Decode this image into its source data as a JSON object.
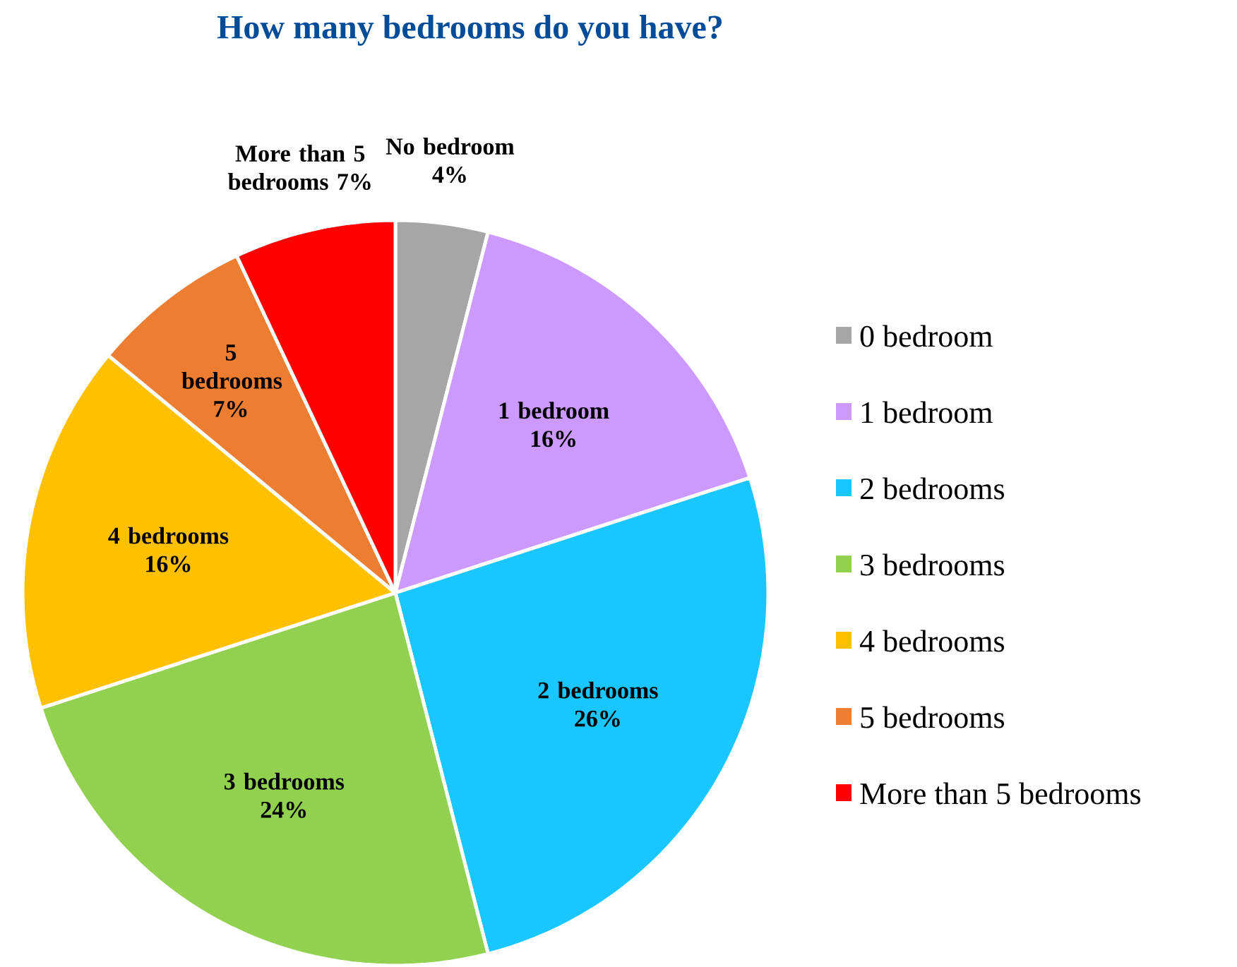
{
  "chart_data": {
    "type": "pie",
    "title": "How many bedrooms do you have?",
    "categories": [
      "0 bedroom",
      "1 bedroom",
      "2 bedrooms",
      "3 bedrooms",
      "4 bedrooms",
      "5 bedrooms",
      "More than 5 bedrooms"
    ],
    "values": [
      4,
      16,
      26,
      24,
      16,
      7,
      7
    ],
    "colors": [
      "#a6a6a6",
      "#cc99ff",
      "#1ac6ff",
      "#92d050",
      "#ffc000",
      "#ed7d31",
      "#ff0000"
    ],
    "value_labels": [
      "No bedroom 4%",
      "1 bedroom 16%",
      "2 bedrooms 26%",
      "3 bedrooms 24%",
      "4 bedrooms 16%",
      "5 bedrooms 7%",
      "More than 5 bedrooms 7%"
    ],
    "legend": "right"
  }
}
